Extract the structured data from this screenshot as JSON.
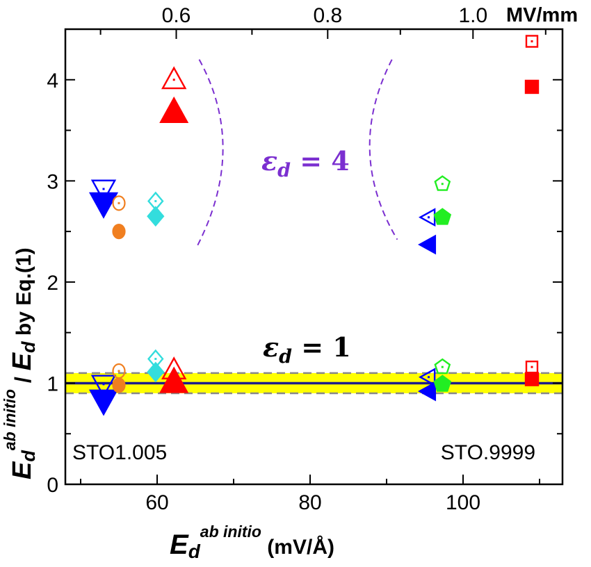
{
  "chart_data": {
    "type": "scatter",
    "xlim": [
      48,
      113
    ],
    "ylim": [
      0,
      4.5
    ],
    "x_ticks": [
      60,
      80,
      100
    ],
    "y_ticks": [
      0,
      1,
      2,
      3,
      4
    ],
    "top_axis": {
      "ticks": [
        0.6,
        0.8,
        1.0
      ],
      "tick_labels": [
        "0.6",
        "0.8",
        "1.0"
      ],
      "tick_positions_bottom_units": [
        62.5,
        82.3,
        101.3
      ],
      "unit": "MV/mm"
    },
    "xlabel": {
      "main": "E",
      "sub": "d",
      "sup": "ab initio",
      "unit": " (mV/Å)"
    },
    "ylabel": {
      "main1": "E",
      "sub1": "d",
      "sup1": "ab initio",
      "slash": " / ",
      "main2": "E",
      "sub2": "d",
      "rest": " by Eq.(1)"
    },
    "band": {
      "y_min": 0.9,
      "y_max": 1.1,
      "color": "#ffff00"
    },
    "reference_line": {
      "y": 1.0,
      "color": "#1c1c8c"
    },
    "annotations": {
      "eps4": {
        "symbol": "ε",
        "sub": "d",
        "rest": " = 4",
        "color": "#7b2fd0"
      },
      "eps1": {
        "symbol": "ε",
        "sub": "d",
        "rest": " = 1",
        "color": "#000000"
      },
      "left_corner": "STO1.005",
      "right_corner": "STO.9999"
    },
    "series": [
      {
        "shape": "triangle-down",
        "color": "#0000ff",
        "points": [
          {
            "x": 53.0,
            "y": 2.92,
            "open": true
          },
          {
            "x": 53.0,
            "y": 2.78,
            "open": false
          },
          {
            "x": 53.0,
            "y": 0.99,
            "open": true
          },
          {
            "x": 53.0,
            "y": 0.83,
            "open": false
          }
        ]
      },
      {
        "shape": "circle",
        "color": "#f07f20",
        "points": [
          {
            "x": 55.0,
            "y": 2.78,
            "open": true
          },
          {
            "x": 55.0,
            "y": 2.5,
            "open": false
          },
          {
            "x": 55.0,
            "y": 1.12,
            "open": true
          },
          {
            "x": 55.0,
            "y": 0.98,
            "open": false
          }
        ]
      },
      {
        "shape": "diamond",
        "color": "#33dddd",
        "points": [
          {
            "x": 59.8,
            "y": 2.8,
            "open": true
          },
          {
            "x": 59.8,
            "y": 2.65,
            "open": false
          },
          {
            "x": 59.8,
            "y": 1.24,
            "open": true
          },
          {
            "x": 59.8,
            "y": 1.11,
            "open": false
          }
        ]
      },
      {
        "shape": "triangle-up",
        "color": "#ff0000",
        "points": [
          {
            "x": 62.2,
            "y": 4.0,
            "open": true
          },
          {
            "x": 62.2,
            "y": 3.68,
            "open": false
          },
          {
            "x": 62.2,
            "y": 1.13,
            "open": true
          },
          {
            "x": 62.2,
            "y": 1.01,
            "open": false
          }
        ]
      },
      {
        "shape": "triangle-left",
        "color": "#0000ff",
        "points": [
          {
            "x": 95.5,
            "y": 2.64,
            "open": true
          },
          {
            "x": 95.5,
            "y": 2.37,
            "open": false
          },
          {
            "x": 95.5,
            "y": 1.06,
            "open": true
          },
          {
            "x": 95.5,
            "y": 0.92,
            "open": false
          }
        ]
      },
      {
        "shape": "pentagon",
        "color": "#22ee22",
        "points": [
          {
            "x": 97.3,
            "y": 2.97,
            "open": true
          },
          {
            "x": 97.3,
            "y": 2.64,
            "open": false
          },
          {
            "x": 97.3,
            "y": 1.16,
            "open": true
          },
          {
            "x": 97.3,
            "y": 0.99,
            "open": false
          }
        ]
      },
      {
        "shape": "square",
        "color": "#ff0000",
        "points": [
          {
            "x": 109.0,
            "y": 4.38,
            "open": true
          },
          {
            "x": 109.0,
            "y": 3.93,
            "open": false
          },
          {
            "x": 109.0,
            "y": 1.16,
            "open": true
          },
          {
            "x": 109.0,
            "y": 1.04,
            "open": false
          }
        ]
      }
    ],
    "dashed_curves": [
      {
        "color": "#7b2fd0",
        "points": [
          [
            65.5,
            4.2
          ],
          [
            68.6,
            3.3
          ],
          [
            65.2,
            2.35
          ]
        ]
      },
      {
        "color": "#7b2fd0",
        "points": [
          [
            90.7,
            4.2
          ],
          [
            87.8,
            3.3
          ],
          [
            91.4,
            2.42
          ]
        ]
      }
    ]
  }
}
